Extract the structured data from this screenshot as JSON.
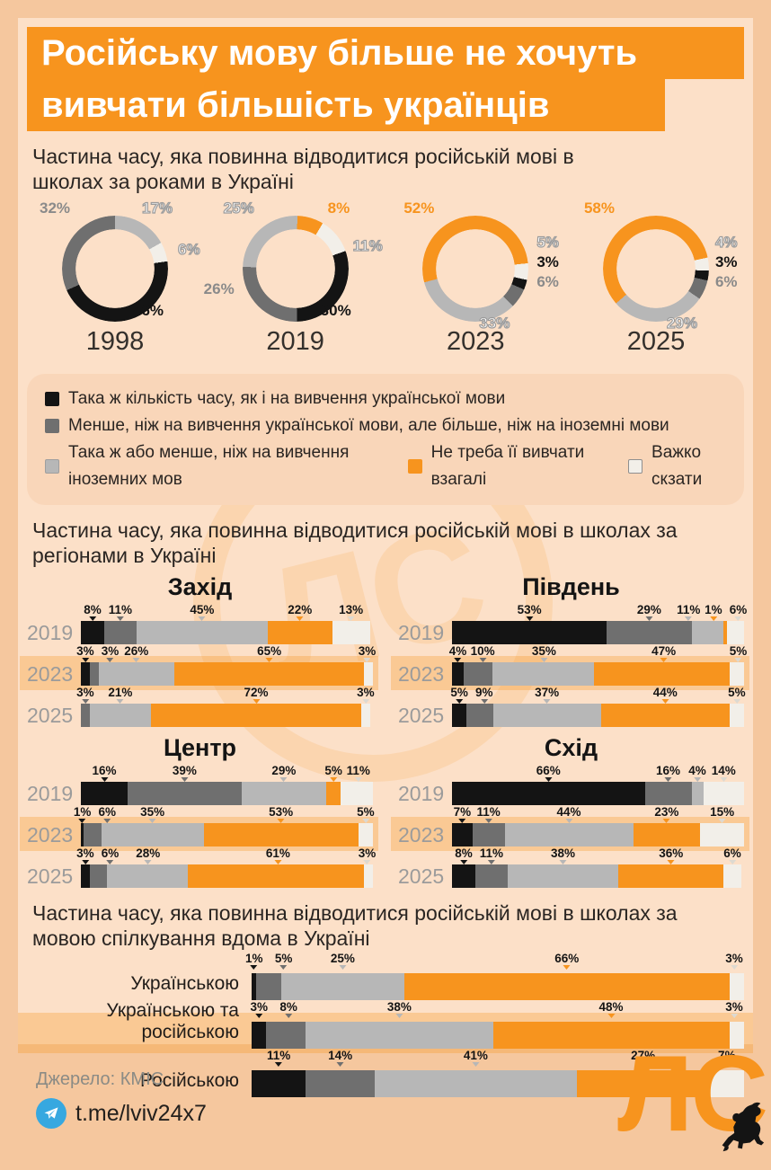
{
  "palette": {
    "black": "#141414",
    "darkgray": "#6f6f6f",
    "lightgray": "#b7b7b7",
    "orange": "#f7941e",
    "white": "#f2efe9"
  },
  "header": {
    "title_line1": "Російську мову більше не хочуть",
    "title_line2": "вивчати більшість українців"
  },
  "sections": {
    "donuts_title": "Частина часу, яка повинна відводитися російській мові в школах за роками в Україні",
    "regions_title": "Частина часу, яка повинна відводитися російській мові в школах за регіонами в Україні",
    "language_title": "Частина часу, яка повинна відводитися російській мові в школах за мовою спілкування вдома в Україні"
  },
  "legend": [
    {
      "key": "black",
      "label": "Така ж кількість часу, як і на вивчення української мови"
    },
    {
      "key": "darkgray",
      "label": "Менше, ніж на вивчення української мови, але більше, ніж на іноземні мови"
    },
    {
      "key": "lightgray",
      "label": "Така ж або менше, ніж на вивчення іноземних мов"
    },
    {
      "key": "orange",
      "label": "Не треба її вивчати взагалі"
    },
    {
      "key": "white",
      "label": "Важко скзати"
    }
  ],
  "chart_data": {
    "donuts": {
      "type": "pie",
      "unit": "%",
      "years": [
        {
          "label": "1998",
          "start_angle": 0,
          "segments": [
            {
              "key": "lightgray",
              "value": 17
            },
            {
              "key": "white",
              "value": 6
            },
            {
              "key": "black",
              "value": 46
            },
            {
              "key": "darkgray",
              "value": 32
            }
          ]
        },
        {
          "label": "2019",
          "start_angle": 2,
          "segments": [
            {
              "key": "orange",
              "value": 8
            },
            {
              "key": "white",
              "value": 11
            },
            {
              "key": "black",
              "value": 30
            },
            {
              "key": "darkgray",
              "value": 26
            },
            {
              "key": "lightgray",
              "value": 25
            }
          ]
        },
        {
          "label": "2023",
          "start_angle": 255,
          "segments": [
            {
              "key": "orange",
              "value": 52
            },
            {
              "key": "white",
              "value": 5
            },
            {
              "key": "black",
              "value": 3
            },
            {
              "key": "darkgray",
              "value": 6
            },
            {
              "key": "lightgray",
              "value": 33
            }
          ]
        },
        {
          "label": "2025",
          "start_angle": 229,
          "segments": [
            {
              "key": "orange",
              "value": 58
            },
            {
              "key": "white",
              "value": 4
            },
            {
              "key": "black",
              "value": 3
            },
            {
              "key": "darkgray",
              "value": 6
            },
            {
              "key": "lightgray",
              "value": 29
            }
          ]
        }
      ]
    },
    "regions": {
      "type": "bar",
      "segment_order": [
        "black",
        "darkgray",
        "lightgray",
        "orange",
        "white"
      ],
      "unit": "%",
      "charts": [
        {
          "title": "Захід",
          "rows": [
            {
              "year": "2019",
              "highlight": false,
              "values": [
                8,
                11,
                45,
                22,
                13
              ]
            },
            {
              "year": "2023",
              "highlight": true,
              "values": [
                3,
                3,
                26,
                65,
                3
              ]
            },
            {
              "year": "2025",
              "highlight": false,
              "values": [
                0,
                3,
                21,
                72,
                3
              ]
            }
          ]
        },
        {
          "title": "Південь",
          "rows": [
            {
              "year": "2019",
              "highlight": false,
              "values": [
                53,
                29,
                11,
                1,
                6
              ]
            },
            {
              "year": "2023",
              "highlight": true,
              "values": [
                4,
                10,
                35,
                47,
                5
              ]
            },
            {
              "year": "2025",
              "highlight": false,
              "values": [
                5,
                9,
                37,
                44,
                5
              ]
            }
          ]
        },
        {
          "title": "Центр",
          "rows": [
            {
              "year": "2019",
              "highlight": false,
              "values": [
                16,
                39,
                29,
                5,
                11
              ]
            },
            {
              "year": "2023",
              "highlight": true,
              "values": [
                1,
                6,
                35,
                53,
                5
              ]
            },
            {
              "year": "2025",
              "highlight": false,
              "values": [
                3,
                6,
                28,
                61,
                3
              ]
            }
          ]
        },
        {
          "title": "Схід",
          "rows": [
            {
              "year": "2019",
              "highlight": false,
              "values": [
                66,
                16,
                4,
                0,
                14
              ]
            },
            {
              "year": "2023",
              "highlight": true,
              "values": [
                7,
                11,
                44,
                23,
                15
              ]
            },
            {
              "year": "2025",
              "highlight": false,
              "values": [
                8,
                11,
                38,
                36,
                6
              ]
            }
          ]
        }
      ]
    },
    "languages": {
      "type": "bar",
      "segment_order": [
        "black",
        "darkgray",
        "lightgray",
        "orange",
        "white"
      ],
      "unit": "%",
      "rows": [
        {
          "label": "Українською",
          "highlight": false,
          "values": [
            1,
            5,
            25,
            66,
            3
          ]
        },
        {
          "label": "Українською та російською",
          "highlight": true,
          "values": [
            3,
            8,
            38,
            48,
            3
          ]
        },
        {
          "label": "Російською",
          "highlight": false,
          "values": [
            11,
            14,
            41,
            27,
            7
          ]
        }
      ]
    }
  },
  "footer": {
    "source": "Джерело: КМІС",
    "telegram": "t.me/lviv24x7",
    "logo": "ЛС"
  }
}
